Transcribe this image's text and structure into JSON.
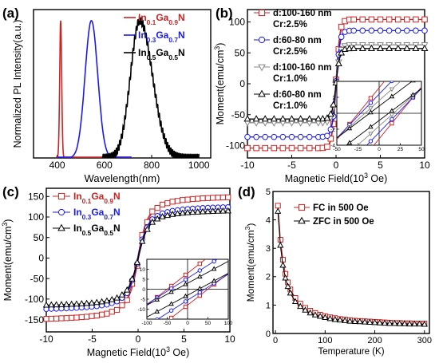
{
  "figure": {
    "panels": [
      "(a)",
      "(b)",
      "(c)",
      "(d)"
    ]
  },
  "chart_data": [
    {
      "id": "a",
      "type": "line",
      "panel_label": "(a)",
      "xlabel": "Wavelength(nm)",
      "ylabel": "Normalized PL Intensity(a.u.)",
      "xlim": [
        300,
        1050
      ],
      "ylim": [
        0,
        1.08
      ],
      "xticks": [
        400,
        600,
        800,
        1000
      ],
      "yticks": [],
      "legend_position": "top-right",
      "series": [
        {
          "name": "In0.1Ga0.9N",
          "label_main": "In",
          "sub1": "0.1",
          "mid": "Ga",
          "sub2": "0.9",
          "tail": "N",
          "color": "#cc2222",
          "center": 415,
          "width": 6,
          "xrange": [
            395,
            715
          ]
        },
        {
          "name": "In0.3Ga0.7N",
          "label_main": "In",
          "sub1": "0.3",
          "mid": "Ga",
          "sub2": "0.7",
          "tail": "N",
          "color": "#1a1aee",
          "center": 545,
          "width": 38,
          "xrange": [
            400,
            715
          ]
        },
        {
          "name": "In0.5Ga0.5N",
          "label_main": "In",
          "sub1": "0.5",
          "mid": "Ga",
          "sub2": "0.5",
          "tail": "N",
          "color": "#000000",
          "center": 750,
          "width": 75,
          "xrange": [
            590,
            1000
          ]
        }
      ]
    },
    {
      "id": "b",
      "type": "line",
      "panel_label": "(b)",
      "xlabel": "Magnetic Field(10",
      "xlabel_sup": "3",
      "xlabel_tail": " Oe)",
      "ylabel": "Moment(emu/cm",
      "ylabel_sup": "3",
      "ylabel_tail": ")",
      "xlim": [
        -10,
        10
      ],
      "ylim": [
        -120,
        120
      ],
      "xticks": [
        -10,
        -5,
        0,
        5,
        10
      ],
      "yticks": [
        -100,
        -50,
        0,
        50,
        100
      ],
      "legend_position": "left",
      "series": [
        {
          "label1": "d:100-160 nm",
          "label2": "Cr:2.5%",
          "ms": 104,
          "hk": 0.45,
          "hc": 0.03,
          "color": "#cc2222",
          "marker": "square"
        },
        {
          "label1": "d:60-80 nm",
          "label2": "Cr:2.5%",
          "ms": 86,
          "hk": 0.45,
          "hc": 0.022,
          "color": "#1a1aee",
          "marker": "circle"
        },
        {
          "label1": "d:100-160 nm",
          "label2": "Cr:1.0%",
          "ms": 63,
          "hk": 0.45,
          "hc": 0.015,
          "color": "#888888",
          "marker": "tri-down"
        },
        {
          "label1": "d:60-80 nm",
          "label2": "Cr:1.0%",
          "ms": 57,
          "hk": 0.45,
          "hc": 0.01,
          "color": "#000000",
          "marker": "tri-up"
        }
      ],
      "inset": {
        "xlim": [
          -50,
          50
        ],
        "ylim": [
          -4,
          4
        ],
        "xticks": [
          -50,
          -25,
          0,
          25,
          50
        ],
        "yticks": [
          -4,
          -2,
          0,
          2,
          4
        ]
      }
    },
    {
      "id": "c",
      "type": "line",
      "panel_label": "(c)",
      "xlabel": "Magnetic Field(10",
      "xlabel_sup": "3",
      "xlabel_tail": " Oe)",
      "ylabel": "Moment(emu/cm",
      "ylabel_sup": "3",
      "ylabel_tail": ")",
      "xlim": [
        -10,
        10
      ],
      "ylim": [
        -180,
        170
      ],
      "xticks": [
        -10,
        -5,
        0,
        5,
        10
      ],
      "yticks": [
        -150,
        -100,
        -50,
        0,
        50,
        100,
        150
      ],
      "legend_position": "top-left",
      "series": [
        {
          "name": "In0.1Ga0.9N",
          "label_main": "In",
          "sub1": "0.1",
          "mid": "Ga",
          "sub2": "0.9",
          "tail": "N",
          "ms": 155,
          "hk": 1.3,
          "hc": 0.06,
          "color": "#cc2222",
          "marker": "square"
        },
        {
          "name": "In0.3Ga0.7N",
          "label_main": "In",
          "sub1": "0.3",
          "mid": "Ga",
          "sub2": "0.7",
          "tail": "N",
          "ms": 130,
          "hk": 1.3,
          "hc": 0.04,
          "color": "#1a1aee",
          "marker": "circle"
        },
        {
          "name": "In0.5Ga0.5N",
          "label_main": "In",
          "sub1": "0.5",
          "mid": "Ga",
          "sub2": "0.5",
          "tail": "N",
          "ms": 120,
          "hk": 1.3,
          "hc": 0.02,
          "color": "#000000",
          "marker": "tri-up"
        }
      ],
      "inset": {
        "xlim": [
          -100,
          100
        ],
        "ylim": [
          -15,
          15
        ],
        "xticks": [
          -100,
          -50,
          0,
          50,
          100
        ],
        "yticks": [
          -10,
          -5,
          0,
          5,
          10
        ]
      }
    },
    {
      "id": "d",
      "type": "line",
      "panel_label": "(d)",
      "xlabel": "Temperature (K)",
      "ylabel": "Moment(emu/cm",
      "ylabel_sup": "3",
      "ylabel_tail": ")",
      "xlim": [
        -5,
        310
      ],
      "ylim": [
        0,
        5
      ],
      "xticks": [
        0,
        100,
        200,
        300
      ],
      "yticks": [
        0,
        1,
        2,
        3,
        4,
        5
      ],
      "legend_position": "top-right",
      "series": [
        {
          "name": "FC in 500 Oe",
          "color": "#cc2222",
          "marker": "square"
        },
        {
          "name": "ZFC in 500 Oe",
          "color": "#000000",
          "marker": "tri-up"
        }
      ],
      "x": [
        5,
        10,
        15,
        20,
        25,
        30,
        40,
        50,
        60,
        70,
        80,
        90,
        100,
        110,
        120,
        130,
        140,
        150,
        160,
        170,
        180,
        190,
        200,
        210,
        220,
        230,
        240,
        250,
        260,
        270,
        280,
        290,
        300
      ],
      "fc": [
        4.5,
        3.3,
        2.6,
        2.1,
        1.8,
        1.55,
        1.25,
        1.05,
        0.9,
        0.8,
        0.72,
        0.66,
        0.61,
        0.57,
        0.54,
        0.51,
        0.49,
        0.47,
        0.45,
        0.44,
        0.43,
        0.42,
        0.41,
        0.4,
        0.39,
        0.38,
        0.37,
        0.37,
        0.36,
        0.36,
        0.35,
        0.35,
        0.35
      ],
      "zfc": [
        4.3,
        3.1,
        2.4,
        1.95,
        1.65,
        1.42,
        1.12,
        0.95,
        0.82,
        0.72,
        0.65,
        0.6,
        0.56,
        0.52,
        0.49,
        0.47,
        0.45,
        0.43,
        0.42,
        0.41,
        0.4,
        0.39,
        0.38,
        0.37,
        0.36,
        0.35,
        0.35,
        0.34,
        0.34,
        0.33,
        0.33,
        0.33,
        0.32
      ]
    }
  ]
}
